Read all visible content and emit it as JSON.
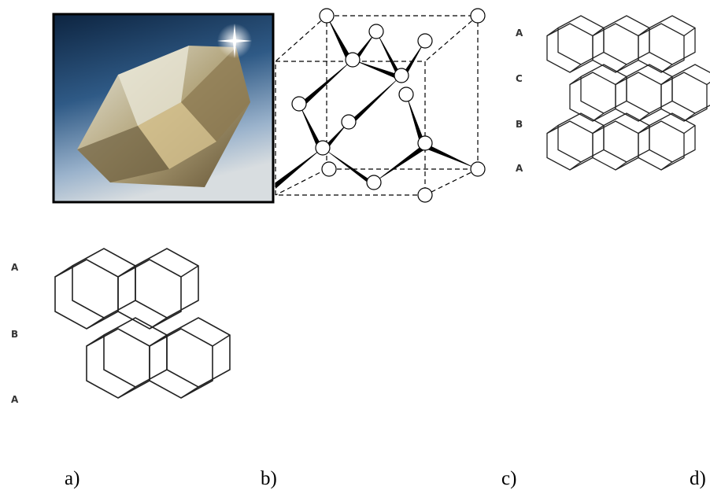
{
  "panels": [
    {
      "caption": "a)"
    },
    {
      "caption": "b)"
    },
    {
      "caption": "c)",
      "layer_labels": [
        "A",
        "C",
        "B",
        "A"
      ]
    },
    {
      "caption": "d)",
      "layer_labels": [
        "A",
        "B",
        "A"
      ]
    }
  ]
}
